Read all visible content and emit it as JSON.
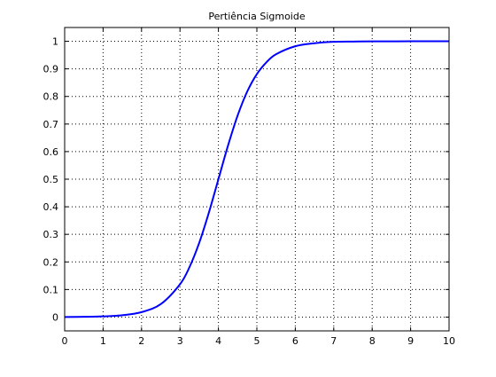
{
  "chart_data": {
    "type": "line",
    "title": "Pertiência Sigmoide",
    "xlabel": "",
    "ylabel": "",
    "xlim": [
      0,
      10
    ],
    "ylim": [
      -0.05,
      1.05
    ],
    "x_ticks": [
      0,
      1,
      2,
      3,
      4,
      5,
      6,
      7,
      8,
      9,
      10
    ],
    "x_tick_labels": [
      "0",
      "1",
      "2",
      "3",
      "4",
      "5",
      "6",
      "7",
      "8",
      "9",
      "10"
    ],
    "y_ticks": [
      0,
      0.1,
      0.2,
      0.3,
      0.4,
      0.5,
      0.6,
      0.7,
      0.8,
      0.9,
      1
    ],
    "y_tick_labels": [
      "0",
      "0.1",
      "0.2",
      "0.3",
      "0.4",
      "0.5",
      "0.6",
      "0.7",
      "0.8",
      "0.9",
      "1"
    ],
    "grid": true,
    "series": [
      {
        "name": "",
        "color": "#0000ff",
        "x": [
          0,
          0.5,
          1,
          1.5,
          2,
          2.5,
          3,
          3.25,
          3.5,
          3.75,
          4,
          4.25,
          4.5,
          4.75,
          5,
          5.25,
          5.5,
          6,
          6.5,
          7,
          7.5,
          8,
          9,
          10
        ],
        "y": [
          0.0003,
          0.001,
          0.0025,
          0.0067,
          0.018,
          0.047,
          0.119,
          0.182,
          0.269,
          0.378,
          0.5,
          0.622,
          0.731,
          0.818,
          0.881,
          0.924,
          0.953,
          0.982,
          0.993,
          0.998,
          0.999,
          0.9997,
          1.0,
          1.0
        ]
      }
    ]
  }
}
